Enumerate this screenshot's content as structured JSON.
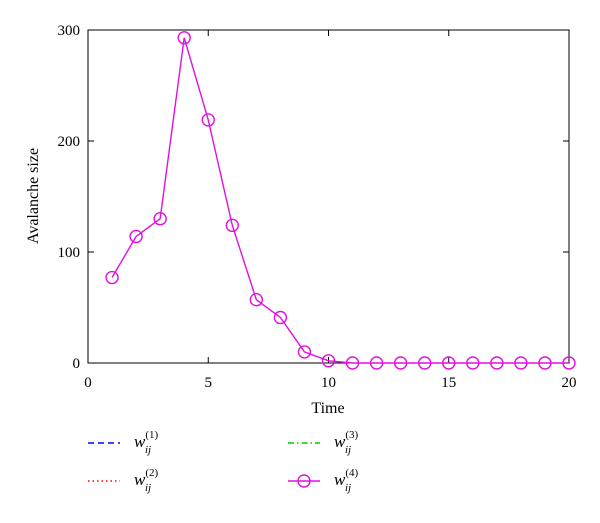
{
  "chart_data": {
    "type": "line",
    "title": "",
    "xlabel": "Time",
    "ylabel": "Avalanche size",
    "xlim": [
      0,
      20
    ],
    "ylim": [
      0,
      300
    ],
    "xticks": [
      "0",
      "5",
      "10",
      "15",
      "20"
    ],
    "yticks": [
      "0",
      "100",
      "200",
      "300"
    ],
    "grid": false,
    "legend_position": "bottom",
    "series": [
      {
        "name_base": "w",
        "name_sub": "ij",
        "name_sup": "(1)",
        "color": "#0000ff",
        "style": "dashed",
        "x": [],
        "y": []
      },
      {
        "name_base": "w",
        "name_sub": "ij",
        "name_sup": "(2)",
        "color": "#ff0000",
        "style": "dotted",
        "x": [],
        "y": []
      },
      {
        "name_base": "w",
        "name_sub": "ij",
        "name_sup": "(3)",
        "color": "#00cc00",
        "style": "dashdot",
        "x": [],
        "y": []
      },
      {
        "name_base": "w",
        "name_sub": "ij",
        "name_sup": "(4)",
        "color": "#e010e0",
        "style": "solid-circle",
        "x": [
          1,
          2,
          3,
          4,
          5,
          6,
          7,
          8,
          9,
          10,
          11,
          12,
          13,
          14,
          15,
          16,
          17,
          18,
          19,
          20
        ],
        "y": [
          77,
          114,
          130,
          293,
          219,
          124,
          57,
          41,
          10,
          2,
          0,
          0,
          0,
          0,
          0,
          0,
          0,
          0,
          0,
          0
        ]
      }
    ]
  }
}
